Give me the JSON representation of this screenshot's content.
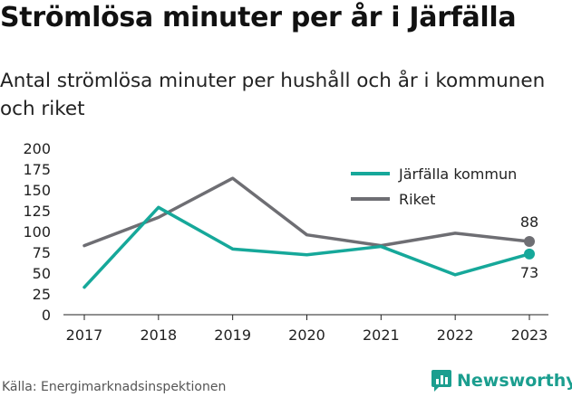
{
  "title": "Strömlösa minuter per år i Järfälla",
  "subtitle": "Antal strömlösa minuter per hushåll och år i kommunen och riket",
  "source": "Källa: Energimarknadsinspektionen",
  "brand": {
    "name": "Newsworthy",
    "icon": "newsworthy-logo-icon",
    "color": "#1b9e8f"
  },
  "chart_data": {
    "type": "line",
    "title": "Strömlösa minuter per år i Järfälla",
    "subtitle": "Antal strömlösa minuter per hushåll och år i kommunen och riket",
    "x": [
      "2017",
      "2018",
      "2019",
      "2020",
      "2021",
      "2022",
      "2023"
    ],
    "series": [
      {
        "name": "Järfälla kommun",
        "color": "#16a89a",
        "values": [
          33,
          129,
          79,
          72,
          82,
          48,
          73
        ],
        "end_label": "73"
      },
      {
        "name": "Riket",
        "color": "#6e6e73",
        "values": [
          83,
          117,
          164,
          96,
          83,
          98,
          88
        ],
        "end_label": "88"
      }
    ],
    "ylim": [
      0,
      200
    ],
    "yticks": [
      "0",
      "25",
      "50",
      "75",
      "100",
      "125",
      "150",
      "175",
      "200"
    ],
    "grid": false,
    "legend": "top-right"
  }
}
